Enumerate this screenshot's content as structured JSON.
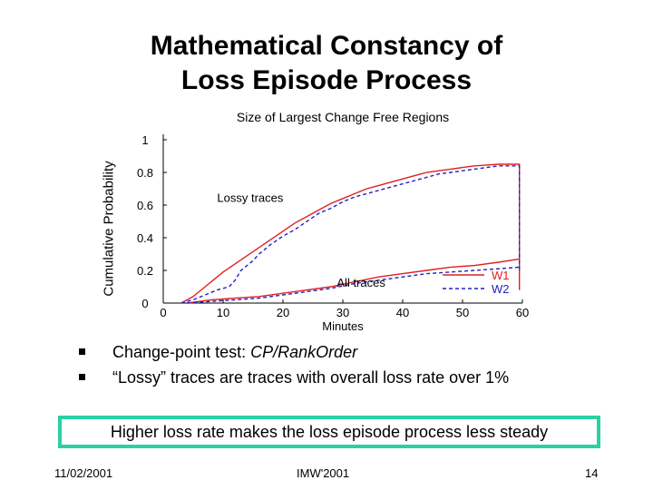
{
  "slide": {
    "title_line1": "Mathematical Constancy of",
    "title_line2": "Loss Episode Process",
    "bullets": [
      {
        "text": "Change-point test: ",
        "italic": "CP/RankOrder"
      },
      {
        "text": "“Lossy” traces are traces with overall loss rate over 1%",
        "italic": ""
      }
    ],
    "callout": "Higher loss rate makes the loss episode process less steady",
    "footer": {
      "date": "11/02/2001",
      "venue": "IMW'2001",
      "page": "14"
    }
  },
  "chart_data": {
    "type": "line",
    "title": "Size of Largest Change Free Regions",
    "xlabel": "Minutes",
    "ylabel": "Cumulative Probability",
    "xlim": [
      0,
      60
    ],
    "ylim": [
      0,
      1
    ],
    "xticks": [
      0,
      10,
      20,
      30,
      40,
      50,
      60
    ],
    "yticks": [
      0,
      0.2,
      0.4,
      0.6,
      0.8,
      1
    ],
    "ytick_labels": [
      "0",
      "0.2",
      "0.4",
      "0.6",
      "0.8",
      "1"
    ],
    "grid": false,
    "legend": "bottom-right",
    "annotations": [
      {
        "text": "Lossy traces",
        "x": 9,
        "y": 0.62
      },
      {
        "text": "All traces",
        "x": 29,
        "y": 0.1
      }
    ],
    "series": [
      {
        "name": "W1",
        "group": "Lossy traces",
        "color": "#e02020",
        "dash": "solid",
        "x": [
          3,
          5,
          7,
          9,
          10,
          12,
          14,
          16,
          18,
          20,
          22,
          24,
          26,
          28,
          30,
          32,
          34,
          36,
          38,
          40,
          42,
          44,
          46,
          48,
          50,
          52,
          54,
          56,
          58,
          59.5,
          59.5
        ],
        "y": [
          0,
          0.04,
          0.1,
          0.16,
          0.19,
          0.24,
          0.29,
          0.34,
          0.39,
          0.44,
          0.49,
          0.53,
          0.57,
          0.61,
          0.64,
          0.67,
          0.7,
          0.72,
          0.74,
          0.76,
          0.78,
          0.8,
          0.81,
          0.82,
          0.83,
          0.84,
          0.845,
          0.85,
          0.85,
          0.85,
          0.08
        ]
      },
      {
        "name": "W2",
        "group": "Lossy traces",
        "color": "#2020c0",
        "dash": "dashed",
        "x": [
          3,
          5,
          7,
          9,
          11,
          12,
          13,
          15,
          16,
          18,
          20,
          22,
          24,
          26,
          28,
          30,
          32,
          34,
          36,
          38,
          40,
          42,
          44,
          46,
          48,
          50,
          52,
          54,
          56,
          58,
          59.5,
          59.5
        ],
        "y": [
          0,
          0.02,
          0.05,
          0.08,
          0.1,
          0.14,
          0.2,
          0.26,
          0.3,
          0.36,
          0.41,
          0.45,
          0.5,
          0.55,
          0.58,
          0.62,
          0.65,
          0.67,
          0.69,
          0.71,
          0.73,
          0.75,
          0.77,
          0.79,
          0.8,
          0.81,
          0.82,
          0.83,
          0.84,
          0.84,
          0.84,
          0.2
        ]
      },
      {
        "name": "W1",
        "group": "All traces",
        "color": "#e02020",
        "dash": "solid",
        "x": [
          4,
          8,
          12,
          16,
          20,
          24,
          28,
          32,
          36,
          40,
          44,
          48,
          52,
          56,
          59.5
        ],
        "y": [
          0,
          0.02,
          0.03,
          0.04,
          0.06,
          0.08,
          0.1,
          0.13,
          0.16,
          0.18,
          0.2,
          0.22,
          0.23,
          0.25,
          0.27
        ]
      },
      {
        "name": "W2",
        "group": "All traces",
        "color": "#2020c0",
        "dash": "dashed",
        "x": [
          4,
          8,
          12,
          16,
          20,
          24,
          28,
          32,
          36,
          40,
          44,
          48,
          52,
          56,
          59.5
        ],
        "y": [
          0,
          0.01,
          0.02,
          0.03,
          0.05,
          0.07,
          0.09,
          0.12,
          0.14,
          0.16,
          0.18,
          0.19,
          0.2,
          0.21,
          0.22
        ]
      }
    ]
  }
}
